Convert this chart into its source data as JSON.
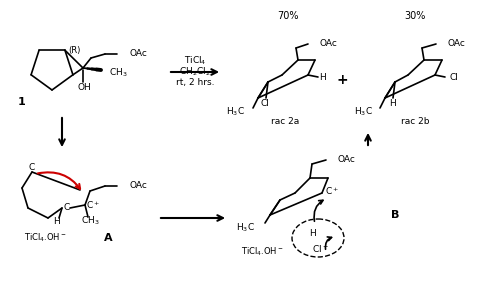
{
  "bg_color": "#ffffff",
  "text_color": "#000000",
  "red_color": "#cc0000",
  "figsize": [
    5.0,
    2.98
  ],
  "dpi": 100,
  "labels": {
    "compound1": "1",
    "compoundA": "A",
    "compoundB": "B",
    "rac2a": "rac 2a",
    "rac2b": "rac 2b",
    "yield70": "70%",
    "yield30": "30%",
    "reagent1": "TiCl$_4$",
    "reagent2": "CH$_2$Cl$_2$",
    "reagent3": "rt, 2 hrs.",
    "OAc": "OAc",
    "OH": "OH",
    "CH3": "CH$_3$",
    "H3C": "H$_3$C",
    "Cl": "Cl",
    "H": "H",
    "Cplus": "C$^+$",
    "TiCl4OH": "TiCl$_4$.OH$^-$",
    "Clminus": "Cl$^-$",
    "R": "(R)",
    "C": "C",
    "plus": "+"
  }
}
